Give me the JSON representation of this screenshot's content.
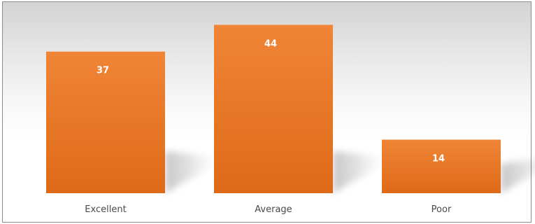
{
  "chart_data": {
    "type": "bar",
    "categories": [
      "Excellent",
      "Average",
      "Poor"
    ],
    "values": [
      37,
      44,
      14
    ],
    "title": "",
    "xlabel": "",
    "ylabel": "",
    "ylim": [
      0,
      45
    ],
    "grid": false,
    "legend": "none",
    "colors": {
      "bar_top": "#f08536",
      "bar_bottom": "#de6a19",
      "label": "#ffffff",
      "tick": "#4a4a4a"
    }
  }
}
